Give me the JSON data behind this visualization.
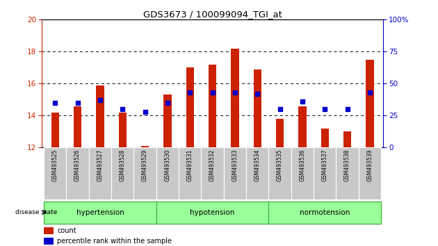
{
  "title": "GDS3673 / 100099094_TGI_at",
  "samples": [
    "GSM493525",
    "GSM493526",
    "GSM493527",
    "GSM493528",
    "GSM493529",
    "GSM493530",
    "GSM493531",
    "GSM493532",
    "GSM493533",
    "GSM493534",
    "GSM493535",
    "GSM493536",
    "GSM493537",
    "GSM493538",
    "GSM493539"
  ],
  "bar_heights": [
    14.2,
    14.6,
    15.9,
    14.2,
    12.1,
    15.3,
    17.0,
    17.2,
    18.2,
    16.9,
    13.8,
    14.6,
    13.2,
    13.0,
    17.5
  ],
  "blue_dots_pct": [
    35,
    35,
    37,
    30,
    28,
    35,
    43,
    43,
    43,
    42,
    30,
    36,
    30,
    30,
    43
  ],
  "bar_base": 12,
  "ylim_left": [
    12,
    20
  ],
  "ylim_right": [
    0,
    100
  ],
  "yticks_left": [
    12,
    14,
    16,
    18,
    20
  ],
  "yticks_right": [
    0,
    25,
    50,
    75,
    100
  ],
  "grid_lines": [
    14,
    16,
    18
  ],
  "bar_color": "#cc2200",
  "dot_color": "#0000cc",
  "groups": [
    {
      "label": "hypertension",
      "start": 0,
      "end": 5
    },
    {
      "label": "hypotension",
      "start": 5,
      "end": 10
    },
    {
      "label": "normotension",
      "start": 10,
      "end": 15
    }
  ],
  "disease_state_label": "disease state",
  "legend_count_label": "count",
  "legend_pct_label": "percentile rank within the sample",
  "tick_label_bg": "#c8c8c8",
  "right_axis_color": "#0000cc",
  "left_axis_color": "#cc2200",
  "bar_width": 0.35,
  "group_color": "#99ff99",
  "group_border_color": "#33aa33"
}
